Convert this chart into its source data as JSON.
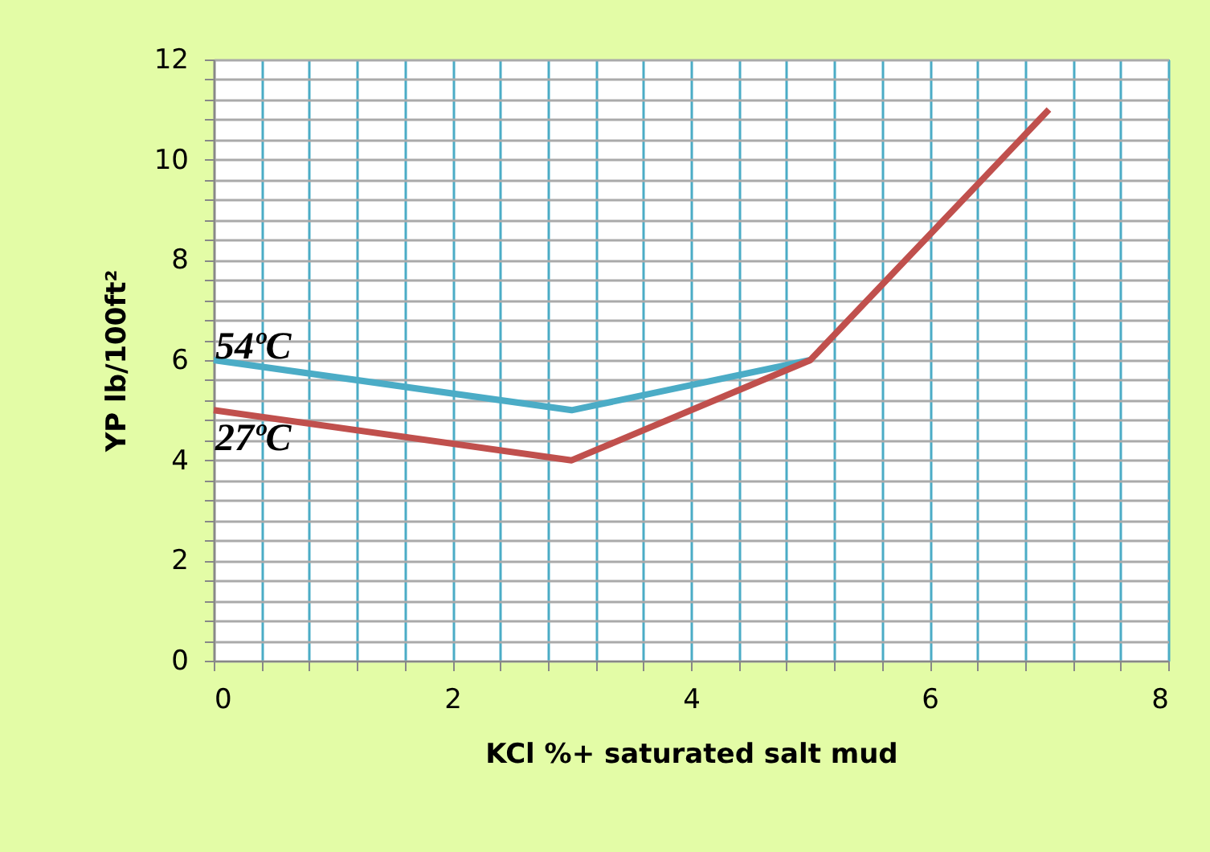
{
  "chart_data": {
    "type": "line",
    "xlabel": "KCl %+ saturated salt mud",
    "ylabel": "YP lb/100ft²",
    "series": [
      {
        "name": "54ºC",
        "color": "#4bacc6",
        "x": [
          0,
          3,
          5
        ],
        "values": [
          6,
          5,
          6
        ]
      },
      {
        "name": "27ºC",
        "color": "#c0504d",
        "x": [
          0,
          3,
          5,
          7
        ],
        "values": [
          5,
          4,
          6,
          11
        ]
      }
    ],
    "xlim": [
      0,
      8
    ],
    "ylim": [
      0,
      12
    ],
    "xticks": [
      0,
      {
        "value": 0.4,
        "label": null
      },
      {
        "value": 0.8,
        "label": null
      },
      {
        "value": 1.2,
        "label": null
      },
      {
        "value": 1.6,
        "label": null
      },
      2,
      {
        "value": 2.4,
        "label": null
      },
      {
        "value": 2.8,
        "label": null
      },
      {
        "value": 3.2,
        "label": null
      },
      {
        "value": 3.6,
        "label": null
      },
      4,
      {
        "value": 4.4,
        "label": null
      },
      {
        "value": 4.8,
        "label": null
      },
      {
        "value": 5.2,
        "label": null
      },
      {
        "value": 5.6,
        "label": null
      },
      6,
      {
        "value": 6.4,
        "label": null
      },
      {
        "value": 6.8,
        "label": null
      },
      {
        "value": 7.2,
        "label": null
      },
      {
        "value": 7.6,
        "label": null
      },
      8
    ],
    "yticks": [
      0,
      {
        "value": 0.4,
        "label": null
      },
      {
        "value": 0.8,
        "label": null
      },
      {
        "value": 1.2,
        "label": null
      },
      {
        "value": 1.6,
        "label": null
      },
      2,
      {
        "value": 2.4,
        "label": null
      },
      {
        "value": 2.8,
        "label": null
      },
      {
        "value": 3.2,
        "label": null
      },
      {
        "value": 3.6,
        "label": null
      },
      4,
      {
        "value": 4.4,
        "label": null
      },
      {
        "value": 4.8,
        "label": null
      },
      {
        "value": 5.2,
        "label": null
      },
      {
        "value": 5.6,
        "label": null
      },
      6,
      {
        "value": 6.4,
        "label": null
      },
      {
        "value": 6.8,
        "label": null
      },
      {
        "value": 7.2,
        "label": null
      },
      {
        "value": 7.6,
        "label": null
      },
      8,
      {
        "value": 8.4,
        "label": null
      },
      {
        "value": 8.8,
        "label": null
      },
      {
        "value": 9.2,
        "label": null
      },
      {
        "value": 9.6,
        "label": null
      },
      10,
      {
        "value": 10.4,
        "label": null
      },
      {
        "value": 10.8,
        "label": null
      },
      {
        "value": 11.2,
        "label": null
      },
      {
        "value": 11.6,
        "label": null
      },
      12
    ],
    "grid": true,
    "legend": false,
    "marker": "none",
    "line_style": "solid"
  }
}
